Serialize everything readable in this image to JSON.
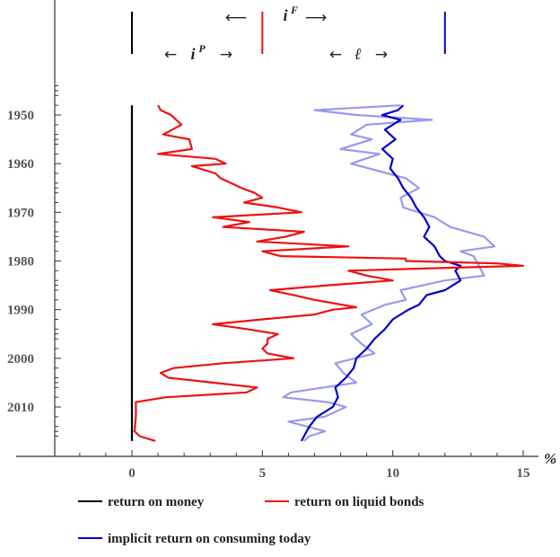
{
  "chart_data": {
    "type": "line",
    "orientation": "time-on-vertical-axis",
    "xlabel": "%",
    "x_ticks": [
      0,
      5,
      10,
      15
    ],
    "xlim": [
      -1.5,
      15.5
    ],
    "y_ticks": [
      1950,
      1960,
      1970,
      1980,
      1990,
      2000,
      2010
    ],
    "ylim": [
      1943,
      2018
    ],
    "y_inverted": true,
    "grid": false,
    "legend_position": "bottom",
    "series": [
      {
        "name": "return on money",
        "color": "#000000",
        "points": [
          [
            0,
            1948
          ],
          [
            0,
            2017
          ]
        ]
      },
      {
        "name": "return on liquid bonds",
        "color": "#ee1111",
        "points": [
          [
            1.0,
            1948
          ],
          [
            1.1,
            1949
          ],
          [
            1.5,
            1950
          ],
          [
            1.9,
            1952
          ],
          [
            1.2,
            1954
          ],
          [
            2.2,
            1955
          ],
          [
            2.3,
            1957
          ],
          [
            1.0,
            1958
          ],
          [
            3.2,
            1959
          ],
          [
            3.6,
            1960
          ],
          [
            2.3,
            1960.5
          ],
          [
            3.2,
            1962
          ],
          [
            3.4,
            1963
          ],
          [
            3.8,
            1964
          ],
          [
            4.2,
            1965
          ],
          [
            4.7,
            1966
          ],
          [
            5.0,
            1967
          ],
          [
            4.3,
            1968
          ],
          [
            5.6,
            1969
          ],
          [
            6.5,
            1970
          ],
          [
            3.1,
            1971
          ],
          [
            4.5,
            1972
          ],
          [
            3.5,
            1973
          ],
          [
            6.6,
            1974
          ],
          [
            5.9,
            1975
          ],
          [
            4.8,
            1976
          ],
          [
            8.3,
            1977
          ],
          [
            5.0,
            1978
          ],
          [
            5.7,
            1979
          ],
          [
            10.5,
            1979.5
          ],
          [
            10.5,
            1980
          ],
          [
            14.0,
            1980.5
          ],
          [
            15.0,
            1981
          ],
          [
            11.5,
            1981.5
          ],
          [
            8.3,
            1982
          ],
          [
            9.0,
            1983
          ],
          [
            10.0,
            1984
          ],
          [
            7.5,
            1985
          ],
          [
            5.3,
            1986
          ],
          [
            6.2,
            1987
          ],
          [
            7.0,
            1988
          ],
          [
            8.6,
            1989.5
          ],
          [
            7.7,
            1990
          ],
          [
            7.0,
            1991
          ],
          [
            5.0,
            1992
          ],
          [
            3.1,
            1993
          ],
          [
            4.4,
            1994
          ],
          [
            5.6,
            1995
          ],
          [
            5.2,
            1996
          ],
          [
            5.2,
            1997
          ],
          [
            5.0,
            1998
          ],
          [
            5.2,
            1999
          ],
          [
            6.2,
            2000
          ],
          [
            3.5,
            2001
          ],
          [
            1.6,
            2002
          ],
          [
            1.1,
            2003
          ],
          [
            1.4,
            2004
          ],
          [
            3.1,
            2005
          ],
          [
            4.8,
            2006
          ],
          [
            4.4,
            2007
          ],
          [
            1.3,
            2008
          ],
          [
            0.15,
            2009
          ],
          [
            0.15,
            2012
          ],
          [
            0.1,
            2015
          ],
          [
            0.3,
            2016
          ],
          [
            0.9,
            2017
          ]
        ]
      },
      {
        "name": "implicit return on consuming today",
        "color": "#0000cc",
        "points": [
          [
            10.4,
            1948
          ],
          [
            10.2,
            1949
          ],
          [
            9.6,
            1950
          ],
          [
            10.3,
            1951
          ],
          [
            9.7,
            1953
          ],
          [
            10.1,
            1955
          ],
          [
            9.6,
            1957
          ],
          [
            10.0,
            1959
          ],
          [
            9.9,
            1961
          ],
          [
            10.2,
            1963
          ],
          [
            10.4,
            1965
          ],
          [
            10.7,
            1967
          ],
          [
            10.9,
            1969
          ],
          [
            11.2,
            1971
          ],
          [
            11.4,
            1973
          ],
          [
            11.2,
            1975
          ],
          [
            11.6,
            1977
          ],
          [
            11.8,
            1979
          ],
          [
            12.0,
            1980
          ],
          [
            12.6,
            1981
          ],
          [
            12.4,
            1982
          ],
          [
            12.6,
            1984
          ],
          [
            12.0,
            1986
          ],
          [
            11.3,
            1987
          ],
          [
            11.0,
            1989
          ],
          [
            10.6,
            1990
          ],
          [
            10.0,
            1992
          ],
          [
            9.7,
            1994
          ],
          [
            9.3,
            1996
          ],
          [
            9.0,
            1998
          ],
          [
            8.6,
            2000
          ],
          [
            8.5,
            2002
          ],
          [
            8.2,
            2004
          ],
          [
            7.8,
            2006
          ],
          [
            7.9,
            2008
          ],
          [
            7.7,
            2010
          ],
          [
            7.1,
            2012
          ],
          [
            6.8,
            2014
          ],
          [
            6.6,
            2016
          ],
          [
            6.5,
            2017
          ]
        ]
      },
      {
        "name": "",
        "color": "#9999ee",
        "points": [
          [
            10.3,
            1948
          ],
          [
            7.0,
            1949
          ],
          [
            8.6,
            1950
          ],
          [
            11.5,
            1951
          ],
          [
            9.0,
            1952
          ],
          [
            8.4,
            1954
          ],
          [
            9.2,
            1955
          ],
          [
            8.0,
            1957
          ],
          [
            9.5,
            1958
          ],
          [
            8.4,
            1960
          ],
          [
            9.8,
            1962
          ],
          [
            10.5,
            1963
          ],
          [
            11.0,
            1965
          ],
          [
            10.3,
            1967
          ],
          [
            10.4,
            1969
          ],
          [
            11.6,
            1971
          ],
          [
            12.2,
            1973
          ],
          [
            13.5,
            1975
          ],
          [
            13.9,
            1977
          ],
          [
            12.6,
            1978
          ],
          [
            13.1,
            1979
          ],
          [
            13.3,
            1981
          ],
          [
            13.5,
            1983
          ],
          [
            12.0,
            1984
          ],
          [
            10.3,
            1986
          ],
          [
            10.5,
            1988
          ],
          [
            9.7,
            1989
          ],
          [
            8.8,
            1991
          ],
          [
            9.2,
            1993
          ],
          [
            8.4,
            1995
          ],
          [
            8.8,
            1997
          ],
          [
            9.3,
            1999
          ],
          [
            7.8,
            2001
          ],
          [
            8.1,
            2003
          ],
          [
            8.6,
            2005
          ],
          [
            6.1,
            2007
          ],
          [
            5.8,
            2008
          ],
          [
            7.5,
            2009
          ],
          [
            8.2,
            2010
          ],
          [
            7.4,
            2012
          ],
          [
            6.0,
            2013
          ],
          [
            7.4,
            2015
          ],
          [
            6.8,
            2016
          ],
          [
            6.6,
            2017
          ]
        ]
      }
    ],
    "header": {
      "iF_label": "i",
      "iF_sup": "F",
      "iP_label": "i",
      "iP_sup": "P",
      "ell_label": "ℓ",
      "arrow_left": "⟵",
      "arrow_right": "⟶",
      "arrow_left_short": "←",
      "arrow_right_short": "→",
      "markers": [
        {
          "x": 0,
          "color": "#000000"
        },
        {
          "x": 5,
          "color": "#ee1111"
        },
        {
          "x": 12,
          "color": "#0000cc"
        }
      ]
    },
    "legend": [
      {
        "label": "return on money",
        "color": "#000000"
      },
      {
        "label": "return on liquid bonds",
        "color": "#ee1111"
      },
      {
        "label": "implicit return on consuming today",
        "color": "#0000cc"
      }
    ]
  }
}
